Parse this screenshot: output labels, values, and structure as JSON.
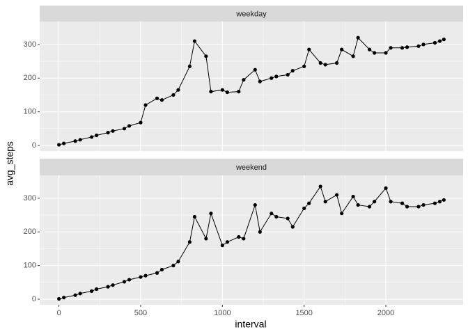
{
  "chart_data": {
    "type": "line",
    "facets": true,
    "xlabel": "interval",
    "ylabel": "avg_steps",
    "xlim": [
      -117.75,
      2472.75
    ],
    "ylim": [
      -16.5,
      368
    ],
    "xticks": [
      0,
      500,
      1000,
      1500,
      2000
    ],
    "yticks": [
      0,
      100,
      200,
      300
    ],
    "grid": true,
    "x": [
      0,
      30,
      100,
      130,
      200,
      230,
      300,
      330,
      400,
      430,
      500,
      530,
      600,
      630,
      700,
      730,
      800,
      830,
      900,
      930,
      1000,
      1030,
      1100,
      1130,
      1200,
      1230,
      1300,
      1330,
      1400,
      1430,
      1500,
      1530,
      1600,
      1630,
      1700,
      1730,
      1800,
      1830,
      1900,
      1930,
      2000,
      2030,
      2100,
      2130,
      2200,
      2230,
      2300,
      2330,
      2355
    ],
    "series": [
      {
        "name": "weekday",
        "color": "#000000",
        "values": [
          2,
          6,
          13,
          17,
          25,
          30,
          38,
          43,
          50,
          58,
          68,
          120,
          140,
          135,
          150,
          165,
          235,
          310,
          265,
          160,
          165,
          158,
          160,
          195,
          225,
          190,
          200,
          205,
          210,
          222,
          235,
          285,
          245,
          240,
          245,
          285,
          265,
          320,
          285,
          275,
          275,
          290,
          290,
          292,
          295,
          300,
          305,
          310,
          315
        ]
      },
      {
        "name": "weekend",
        "color": "#000000",
        "values": [
          1,
          5,
          12,
          17,
          24,
          30,
          37,
          42,
          52,
          58,
          66,
          70,
          78,
          88,
          100,
          112,
          170,
          245,
          180,
          255,
          160,
          170,
          185,
          180,
          280,
          200,
          255,
          245,
          240,
          215,
          270,
          285,
          335,
          290,
          310,
          255,
          305,
          280,
          275,
          290,
          330,
          290,
          285,
          275,
          275,
          280,
          285,
          290,
          295
        ]
      }
    ]
  }
}
